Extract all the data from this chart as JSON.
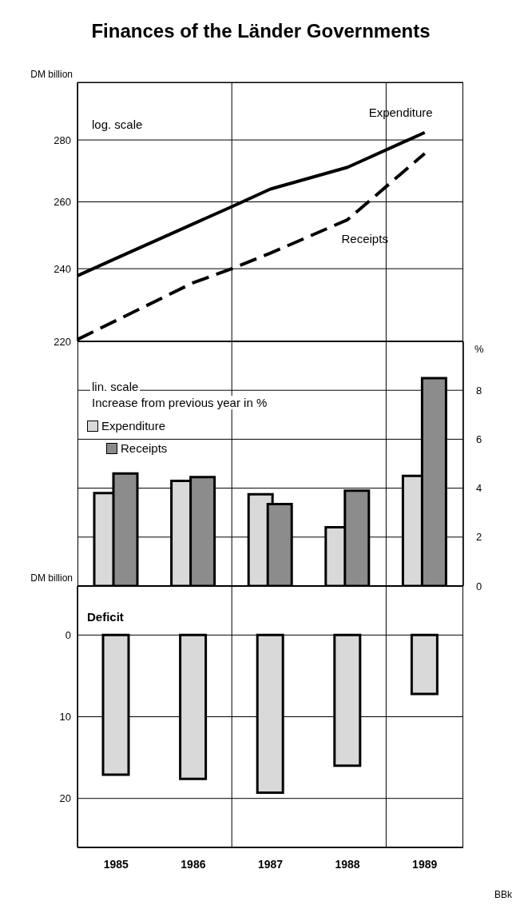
{
  "chart_data": [
    {
      "type": "line",
      "title": "Finances of the Länder Governments",
      "ylabel": "DM billion",
      "annotations": [
        "log. scale"
      ],
      "categories": [
        null,
        null,
        null,
        null,
        null,
        null,
        null,
        null,
        null,
        null
      ],
      "ylim": [
        220,
        300
      ],
      "yticks": [
        220,
        240,
        260,
        280
      ],
      "log": true,
      "grid": true,
      "tick_labels": "y",
      "series": [
        {
          "name": "Expenditure",
          "color": "#000000",
          "line_style": "solid",
          "values": [
            238,
            243,
            null,
            null,
            258.5,
            264,
            null,
            271,
            null,
            282.5
          ]
        },
        {
          "name": "Receipts",
          "color": "#000000",
          "line_style": "dashed",
          "values": [
            220.5,
            null,
            null,
            236,
            240,
            244.5,
            null,
            254.5,
            null,
            275.5
          ]
        }
      ]
    },
    {
      "type": "bar",
      "y2label": "%",
      "annotations": [
        "lin. scale",
        "Increase from previous year in %"
      ],
      "categories": [
        "1985",
        "1986",
        "1987",
        "1988",
        "1989"
      ],
      "y2lim": [
        0,
        10
      ],
      "y2ticks": [
        0,
        2,
        4,
        6,
        8
      ],
      "grid": true,
      "legend": "top left",
      "tick_labels": "y",
      "series": [
        {
          "name": "Expenditure",
          "color": "#d9d9d9",
          "axis": "y2",
          "values": [
            3.8,
            4.3,
            3.75,
            2.4,
            4.5
          ]
        },
        {
          "name": "Receipts",
          "color": "#8c8c8c",
          "axis": "y2",
          "values": [
            4.6,
            4.45,
            3.35,
            3.9,
            8.5
          ]
        }
      ]
    },
    {
      "type": "bar",
      "title": "Deficit",
      "ylabel": "DM billion",
      "annotations": [
        "BBk"
      ],
      "categories": [
        "1985",
        "1986",
        "1987",
        "1988",
        "1989"
      ],
      "values": [
        17.1,
        17.6,
        19.3,
        16.0,
        7.2
      ],
      "color": "#d9d9d9",
      "ylim": [
        26,
        -6
      ],
      "yticks": [
        0,
        10,
        20
      ],
      "grid": true
    }
  ]
}
